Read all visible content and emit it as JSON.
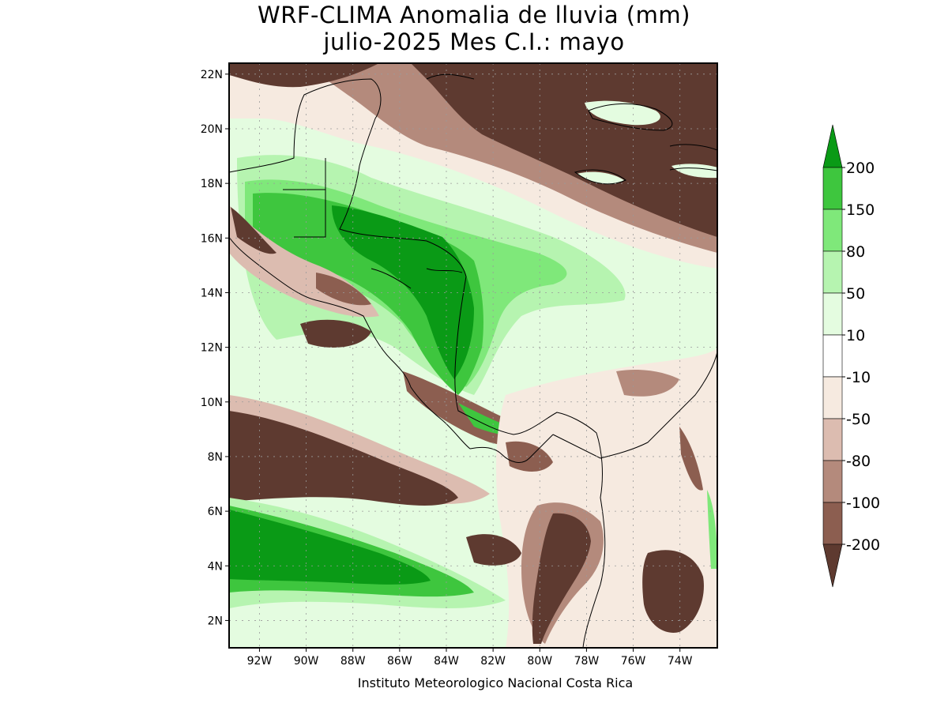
{
  "title_line1": "WRF-CLIMA Anomalia de lluvia (mm)",
  "title_line2": "julio-2025 Mes C.I.: mayo",
  "credit": "Instituto Meteorologico Nacional Costa Rica",
  "map": {
    "lon_range": [
      -93.3,
      -72.4
    ],
    "lat_range": [
      1.0,
      22.4
    ],
    "lat_ticks": [
      {
        "value": 22,
        "label": "22N"
      },
      {
        "value": 20,
        "label": "20N"
      },
      {
        "value": 18,
        "label": "18N"
      },
      {
        "value": 16,
        "label": "16N"
      },
      {
        "value": 14,
        "label": "14N"
      },
      {
        "value": 12,
        "label": "12N"
      },
      {
        "value": 10,
        "label": "10N"
      },
      {
        "value": 8,
        "label": "8N"
      },
      {
        "value": 6,
        "label": "6N"
      },
      {
        "value": 4,
        "label": "4N"
      },
      {
        "value": 2,
        "label": "2N"
      }
    ],
    "lon_ticks": [
      {
        "value": -92,
        "label": "92W"
      },
      {
        "value": -90,
        "label": "90W"
      },
      {
        "value": -88,
        "label": "88W"
      },
      {
        "value": -86,
        "label": "86W"
      },
      {
        "value": -84,
        "label": "84W"
      },
      {
        "value": -82,
        "label": "82W"
      },
      {
        "value": -80,
        "label": "80W"
      },
      {
        "value": -78,
        "label": "78W"
      },
      {
        "value": -76,
        "label": "76W"
      },
      {
        "value": -74,
        "label": "74W"
      }
    ],
    "grid": true
  },
  "colorbar": {
    "levels": [
      {
        "label": "200",
        "color": "#0a9a16"
      },
      {
        "label": "150",
        "color": "#3ec63e"
      },
      {
        "label": "80",
        "color": "#7fe87a"
      },
      {
        "label": "50",
        "color": "#b6f4b0"
      },
      {
        "label": "10",
        "color": "#e4fce0"
      },
      {
        "label": "-10",
        "color": "#ffffff"
      },
      {
        "label": "-50",
        "color": "#f6eae0"
      },
      {
        "label": "-80",
        "color": "#dcbcb0"
      },
      {
        "label": "-100",
        "color": "#b48a7c"
      },
      {
        "label": "-200",
        "color": "#8c5e50"
      }
    ],
    "top_color": "#0a9a16",
    "bottom_color": "#5e3a30",
    "colors": {
      "gt200": "#0a9a16",
      "150to200": "#3ec63e",
      "80to150": "#7fe87a",
      "50to80": "#b6f4b0",
      "10to50": "#e4fce0",
      "m10to10": "#ffffff",
      "m50tom10": "#f6eae0",
      "m80tom50": "#dcbcb0",
      "m100tom80": "#b48a7c",
      "m200tom100": "#8c5e50",
      "ltm200": "#5e3a30"
    }
  }
}
